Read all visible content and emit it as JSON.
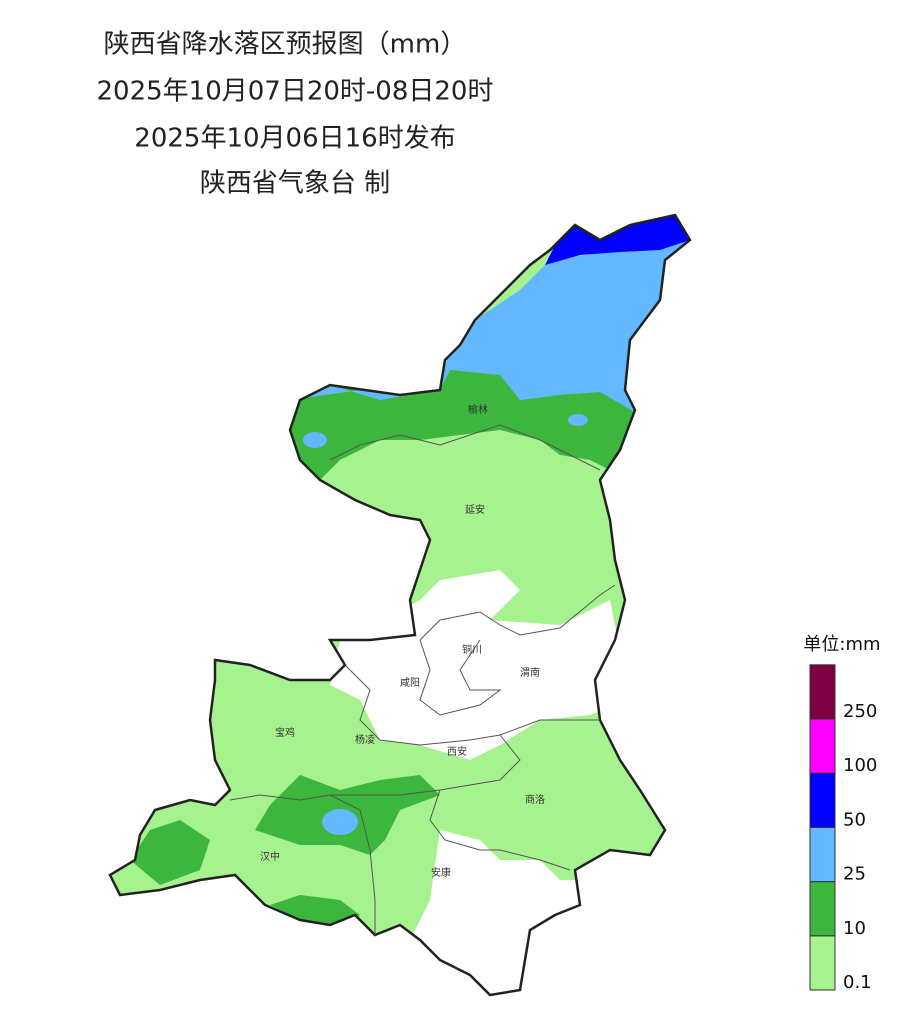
{
  "header": {
    "title": "陕西省降水落区预报图（mm）",
    "period": "2025年10月07日20时-08日20时",
    "issued": "2025年10月06日16时发布",
    "producer": "陕西省气象台 制"
  },
  "cities": [
    "榆林",
    "延安",
    "铜川",
    "咸阳",
    "渭南",
    "宝鸡",
    "杨凌",
    "西安",
    "商洛",
    "汉中",
    "安康"
  ],
  "legend": {
    "title": "单位:mm",
    "breaks": [
      0.1,
      10,
      25,
      50,
      100,
      250
    ],
    "colors": [
      "#a6f28f",
      "#3cb63c",
      "#63b8ff",
      "#0000fe",
      "#fe00fe",
      "#7f0040"
    ]
  }
}
